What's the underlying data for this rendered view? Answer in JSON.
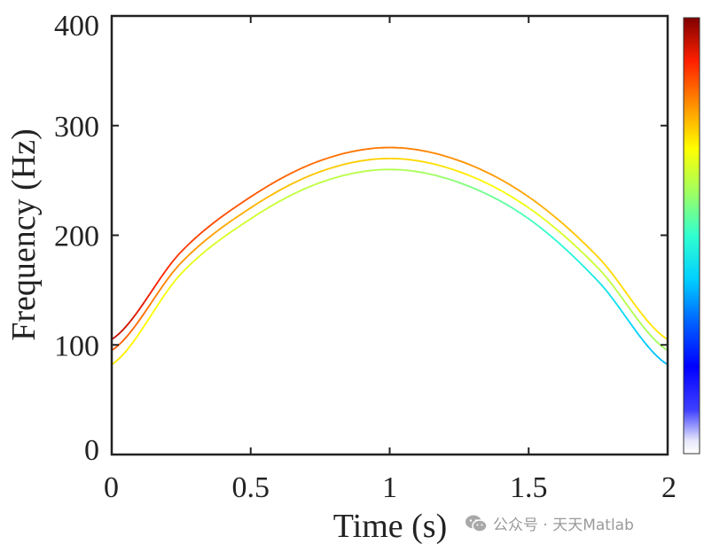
{
  "chart_data": {
    "type": "line",
    "title": "",
    "xlabel": "Time (s)",
    "ylabel": "Frequency (Hz)",
    "xlim": [
      0,
      2
    ],
    "ylim": [
      0,
      400
    ],
    "xticks": [
      "0",
      "0.5",
      "1",
      "1.5",
      "2"
    ],
    "yticks": [
      "0",
      "100",
      "200",
      "300",
      "400"
    ],
    "grid": false,
    "colormap": "jet",
    "colorbar": "right",
    "series": [
      {
        "x": [
          0,
          0.25,
          0.5,
          0.75,
          1.0,
          1.25,
          1.5,
          1.75,
          2.0
        ],
        "y": [
          105,
          185,
          235,
          268,
          280,
          268,
          235,
          180,
          105
        ],
        "amplitude": [
          0.95,
          0.88,
          0.85,
          0.83,
          0.82,
          0.8,
          0.78,
          0.74,
          0.72
        ]
      },
      {
        "x": [
          0,
          0.25,
          0.5,
          0.75,
          1.0,
          1.25,
          1.5,
          1.75,
          2.0
        ],
        "y": [
          95,
          175,
          225,
          258,
          270,
          258,
          225,
          170,
          95
        ],
        "amplitude": [
          0.85,
          0.8,
          0.77,
          0.75,
          0.74,
          0.72,
          0.68,
          0.64,
          0.6
        ]
      },
      {
        "x": [
          0,
          0.25,
          0.5,
          0.75,
          1.0,
          1.25,
          1.5,
          1.75,
          2.0
        ],
        "y": [
          82,
          165,
          215,
          248,
          260,
          248,
          215,
          158,
          82
        ],
        "amplitude": [
          0.72,
          0.68,
          0.65,
          0.63,
          0.62,
          0.58,
          0.52,
          0.45,
          0.38
        ]
      }
    ]
  },
  "watermark": {
    "icon": "wechat-icon",
    "text": "公众号 · 天天Matlab",
    "color": "#9a9a9a"
  }
}
